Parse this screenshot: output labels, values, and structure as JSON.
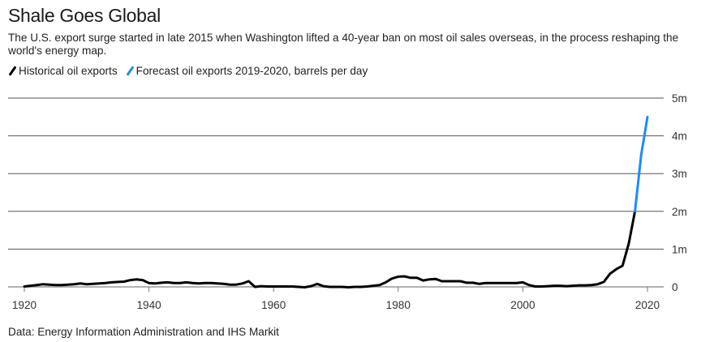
{
  "chart_data": {
    "type": "line",
    "title": "Shale Goes Global",
    "subtitle": "The U.S. export surge started in late 2015 when Washington lifted a 40-year ban on most oil sales overseas, in the process reshaping the world's energy map.",
    "xlabel": "",
    "ylabel": "barrels per day",
    "xlim": [
      1919,
      2022
    ],
    "ylim": [
      0,
      5
    ],
    "x_ticks": [
      1920,
      1940,
      1960,
      1980,
      2000,
      2020
    ],
    "x_tick_labels": [
      "1920",
      "1940",
      "1960",
      "1980",
      "2000",
      "2020"
    ],
    "y_ticks": [
      0,
      1,
      2,
      3,
      4,
      5
    ],
    "y_tick_labels": [
      "0",
      "1m",
      "2m",
      "3m",
      "4m",
      "5m"
    ],
    "grid": true,
    "legend_placement": "top-left",
    "series": [
      {
        "name": "Historical oil exports",
        "color": "#000000",
        "x": [
          1920,
          1921,
          1922,
          1923,
          1924,
          1925,
          1926,
          1927,
          1928,
          1929,
          1930,
          1931,
          1932,
          1933,
          1934,
          1935,
          1936,
          1937,
          1938,
          1939,
          1940,
          1941,
          1942,
          1943,
          1944,
          1945,
          1946,
          1947,
          1948,
          1949,
          1950,
          1951,
          1952,
          1953,
          1954,
          1955,
          1956,
          1957,
          1958,
          1959,
          1960,
          1961,
          1962,
          1963,
          1964,
          1965,
          1966,
          1967,
          1968,
          1969,
          1970,
          1971,
          1972,
          1973,
          1974,
          1975,
          1976,
          1977,
          1978,
          1979,
          1980,
          1981,
          1982,
          1983,
          1984,
          1985,
          1986,
          1987,
          1988,
          1989,
          1990,
          1991,
          1992,
          1993,
          1994,
          1995,
          1996,
          1997,
          1998,
          1999,
          2000,
          2001,
          2002,
          2003,
          2004,
          2005,
          2006,
          2007,
          2008,
          2009,
          2010,
          2011,
          2012,
          2013,
          2014,
          2015,
          2016,
          2017,
          2018
        ],
        "values": [
          0.01,
          0.03,
          0.05,
          0.07,
          0.06,
          0.05,
          0.05,
          0.06,
          0.07,
          0.09,
          0.07,
          0.08,
          0.09,
          0.1,
          0.12,
          0.13,
          0.14,
          0.18,
          0.2,
          0.18,
          0.1,
          0.09,
          0.11,
          0.12,
          0.1,
          0.1,
          0.12,
          0.1,
          0.09,
          0.1,
          0.1,
          0.09,
          0.08,
          0.06,
          0.06,
          0.09,
          0.15,
          0.0,
          0.02,
          0.01,
          0.01,
          0.01,
          0.01,
          0.01,
          0.0,
          -0.01,
          0.02,
          0.08,
          0.02,
          0.0,
          0.0,
          0.0,
          -0.01,
          0.0,
          0.0,
          0.01,
          0.03,
          0.05,
          0.12,
          0.22,
          0.27,
          0.28,
          0.24,
          0.24,
          0.17,
          0.2,
          0.21,
          0.15,
          0.15,
          0.15,
          0.15,
          0.11,
          0.11,
          0.08,
          0.1,
          0.1,
          0.1,
          0.1,
          0.1,
          0.1,
          0.12,
          0.05,
          0.01,
          0.01,
          0.02,
          0.03,
          0.03,
          0.02,
          0.03,
          0.04,
          0.04,
          0.05,
          0.07,
          0.13,
          0.35,
          0.47,
          0.56,
          1.15,
          2.0
        ]
      },
      {
        "name": "Forecast oil exports 2019-2020, barrels per day",
        "color": "#1a8cff",
        "x": [
          2018,
          2019,
          2019.5,
          2020
        ],
        "values": [
          2.0,
          3.5,
          4.0,
          4.5
        ]
      }
    ],
    "source": "Data: Energy Information Administration and IHS Markit"
  },
  "legend": {
    "historical_label": "Historical oil exports",
    "forecast_label": "Forecast oil exports 2019-2020, barrels per day",
    "historical_color": "#000000",
    "forecast_color": "#1a8cff"
  }
}
